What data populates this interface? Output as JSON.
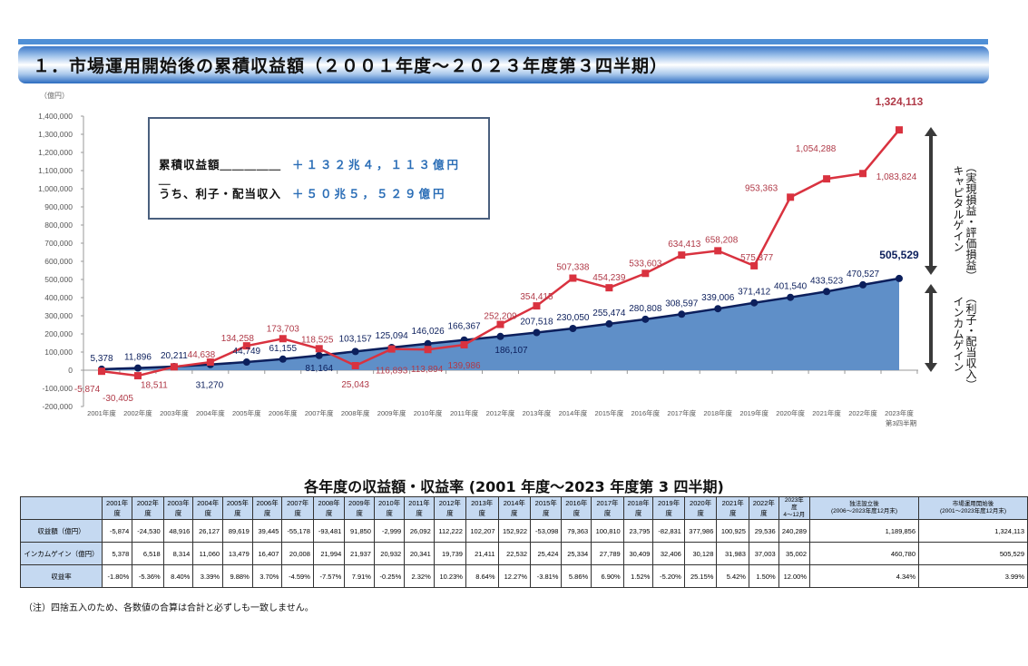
{
  "header": {
    "title": "１．市場運用開始後の累積収益額（２００１年度～２０２３年度第３四半期）"
  },
  "info_box": {
    "rows": [
      {
        "label": "累積収益額＿＿＿＿＿＿",
        "value": "＋１３２兆４，１１３億円"
      },
      {
        "label": "うち、利子・配当収入",
        "value": "＋５０兆５，５２９億円"
      }
    ]
  },
  "side_labels": {
    "capital_gain": "キャピタルゲイン",
    "capital_gain_sub": "（実現損益・評価損益）",
    "income_gain": "インカムゲイン",
    "income_gain_sub": "（利子・配当収入）"
  },
  "colors": {
    "cumulative_line": "#d9323f",
    "cumulative_label": "#b03a48",
    "income_line": "#0c1f5c",
    "income_area": "#5f8fc8",
    "header_blue": "#4f8fd6",
    "table_header_bg": "#c5d9f1",
    "info_value": "#2a6db6"
  },
  "chart_data": {
    "type": "line",
    "title": "市場運用開始後の累積収益額",
    "ylabel": "（億円）",
    "xlabel": "",
    "ylim": [
      -200000,
      1400000
    ],
    "yticks": [
      1400000,
      1300000,
      1200000,
      1100000,
      1000000,
      900000,
      800000,
      700000,
      600000,
      500000,
      400000,
      300000,
      200000,
      100000,
      0,
      -100000,
      -200000
    ],
    "ytick_labels": [
      "1,400,000",
      "1,300,000",
      "1,200,000",
      "1,100,000",
      "1,000,000",
      "900,000",
      "800,000",
      "700,000",
      "600,000",
      "500,000",
      "400,000",
      "300,000",
      "200,000",
      "100,000",
      "0",
      "-100,000",
      "-200,000"
    ],
    "categories": [
      "2001年度",
      "2002年度",
      "2003年度",
      "2004年度",
      "2005年度",
      "2006年度",
      "2007年度",
      "2008年度",
      "2009年度",
      "2010年度",
      "2011年度",
      "2012年度",
      "2013年度",
      "2014年度",
      "2015年度",
      "2016年度",
      "2017年度",
      "2018年度",
      "2019年度",
      "2020年度",
      "2021年度",
      "2022年度",
      "2023年度"
    ],
    "last_category_sub": "第3四半期",
    "grid": false,
    "legend": "none (right-side bracket annotations)",
    "series": [
      {
        "name": "累積収益額",
        "type": "line",
        "marker": "square",
        "values": [
          -5874,
          -30405,
          18511,
          44638,
          134258,
          173703,
          118525,
          25043,
          116893,
          113894,
          139986,
          252209,
          354415,
          507338,
          454239,
          533603,
          634413,
          658208,
          575377,
          953363,
          1054288,
          1083824,
          1324113
        ],
        "labels": [
          "-5,874",
          "-30,405",
          "18,511",
          "44,638",
          "134,258",
          "173,703",
          "118,525",
          "25,043",
          "116,893",
          "113,894",
          "139,986",
          "252,209",
          "354,415",
          "507,338",
          "454,239",
          "533,603",
          "634,413",
          "658,208",
          "575,377",
          "953,363",
          "1,054,288",
          "1,083,824",
          "1,324,113"
        ]
      },
      {
        "name": "累積インカムゲイン（利子・配当収入）",
        "type": "area",
        "marker": "circle",
        "values": [
          5378,
          11896,
          20211,
          31270,
          44749,
          61155,
          81164,
          103157,
          125094,
          146026,
          166367,
          186107,
          207518,
          230050,
          255474,
          280808,
          308597,
          339006,
          371412,
          401540,
          433523,
          470527,
          505529
        ],
        "labels": [
          "5,378",
          "11,896",
          "20,211",
          "31,270",
          "44,749",
          "61,155",
          "81,164",
          "103,157",
          "125,094",
          "146,026",
          "166,367",
          "186,107",
          "207,518",
          "230,050",
          "255,474",
          "280,808",
          "308,597",
          "339,006",
          "371,412",
          "401,540",
          "433,523",
          "470,527",
          "505,529"
        ]
      }
    ]
  },
  "table": {
    "title": "各年度の収益額・収益率 (2001 年度～2023 年度第 3 四半期)",
    "columns": [
      "2001年度",
      "2002年度",
      "2003年度",
      "2004年度",
      "2005年度",
      "2006年度",
      "2007年度",
      "2008年度",
      "2009年度",
      "2010年度",
      "2011年度",
      "2012年度",
      "2013年度",
      "2014年度",
      "2015年度",
      "2016年度",
      "2017年度",
      "2018年度",
      "2019年度",
      "2020年度",
      "2021年度",
      "2022年度"
    ],
    "col_2023": {
      "line1": "2023年度",
      "line2": "4～12月"
    },
    "col_since_independent": {
      "line1": "独法設立後",
      "line2": "(2006～2023年度12月末)"
    },
    "col_since_start": {
      "line1": "市場運用開始後",
      "line2": "(2001～2023年度12月末)"
    },
    "rows": [
      {
        "label": "収益額（億円）",
        "values": [
          "-5,874",
          "-24,530",
          "48,916",
          "26,127",
          "89,619",
          "39,445",
          "-55,178",
          "-93,481",
          "91,850",
          "-2,999",
          "26,092",
          "112,222",
          "102,207",
          "152,922",
          "-53,098",
          "79,363",
          "100,810",
          "23,795",
          "-82,831",
          "377,986",
          "100,925",
          "29,536",
          "240,289",
          "1,189,856",
          "1,324,113"
        ]
      },
      {
        "label": "インカムゲイン（億円）",
        "values": [
          "5,378",
          "6,518",
          "8,314",
          "11,060",
          "13,479",
          "16,407",
          "20,008",
          "21,994",
          "21,937",
          "20,932",
          "20,341",
          "19,739",
          "21,411",
          "22,532",
          "25,424",
          "25,334",
          "27,789",
          "30,409",
          "32,406",
          "30,128",
          "31,983",
          "37,003",
          "35,002",
          "460,780",
          "505,529"
        ]
      },
      {
        "label": "収益率",
        "values": [
          "-1.80%",
          "-5.36%",
          "8.40%",
          "3.39%",
          "9.88%",
          "3.70%",
          "-4.59%",
          "-7.57%",
          "7.91%",
          "-0.25%",
          "2.32%",
          "10.23%",
          "8.64%",
          "12.27%",
          "-3.81%",
          "5.86%",
          "6.90%",
          "1.52%",
          "-5.20%",
          "25.15%",
          "5.42%",
          "1.50%",
          "12.00%",
          "4.34%",
          "3.99%"
        ]
      }
    ]
  },
  "note": "（注）四捨五入のため、各数値の合算は合計と必ずしも一致しません。"
}
